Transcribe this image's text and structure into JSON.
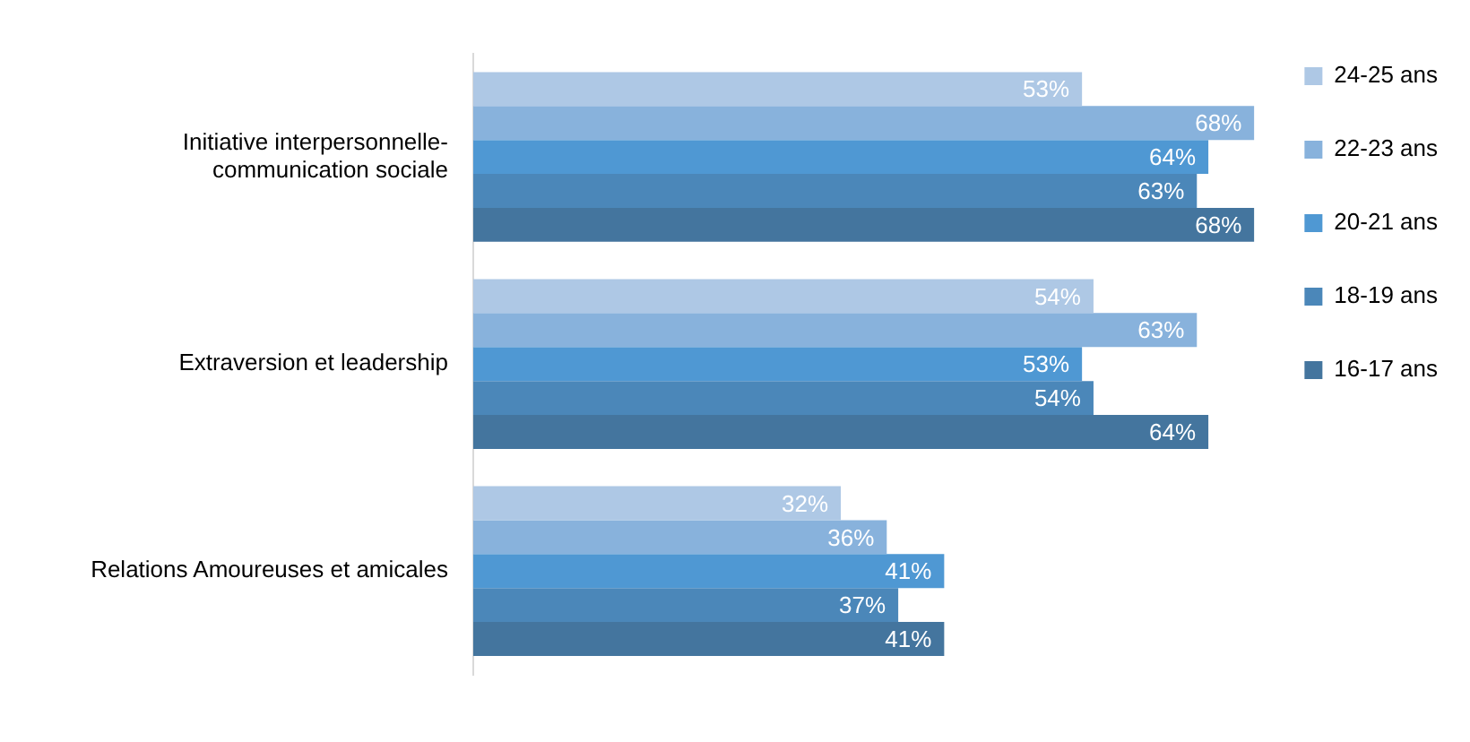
{
  "chart_data": {
    "type": "bar",
    "orientation": "horizontal",
    "categories": [
      "Initiative interpersonnelle-communication sociale",
      "Extraversion et leadership",
      "Relations Amoureuses et amicales"
    ],
    "series": [
      {
        "name": "24-25 ans",
        "color": "#aec8e5",
        "values": [
          53,
          54,
          32
        ],
        "value_labels": [
          "53%",
          "54%",
          "32%"
        ]
      },
      {
        "name": "22-23 ans",
        "color": "#88b2dc",
        "values": [
          68,
          63,
          36
        ],
        "value_labels": [
          "68%",
          "63%",
          "36%"
        ]
      },
      {
        "name": "20-21 ans",
        "color": "#4f98d3",
        "values": [
          64,
          53,
          41
        ],
        "value_labels": [
          "64%",
          "53%",
          "41%"
        ]
      },
      {
        "name": "18-19 ans",
        "color": "#4b87b9",
        "values": [
          63,
          54,
          37
        ],
        "value_labels": [
          "63%",
          "54%",
          "37%"
        ]
      },
      {
        "name": "16-17 ans",
        "color": "#44759e",
        "values": [
          68,
          64,
          41
        ],
        "value_labels": [
          "68%",
          "64%",
          "41%"
        ]
      }
    ],
    "legend": "right"
  }
}
